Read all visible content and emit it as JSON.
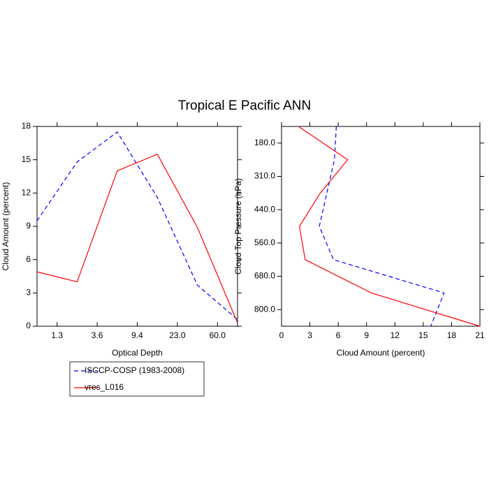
{
  "title": "Tropical E Pacific ANN",
  "chart_data": [
    {
      "type": "line",
      "orientation": "vertical",
      "xlabel": "Optical Depth",
      "ylabel": "Cloud Amount (percent)",
      "x": [
        0,
        1,
        2,
        3,
        4,
        5
      ],
      "xlim": [
        0,
        5
      ],
      "xticks": [
        {
          "value": 0.5,
          "label": "1.3"
        },
        {
          "value": 1.5,
          "label": "3.6"
        },
        {
          "value": 2.5,
          "label": "9.4"
        },
        {
          "value": 3.5,
          "label": "23.0"
        },
        {
          "value": 4.5,
          "label": "60.0"
        }
      ],
      "ylim": [
        0,
        18
      ],
      "yticks": [
        0,
        3,
        6,
        9,
        12,
        15,
        18
      ],
      "legend": true,
      "series": [
        {
          "name": "ISCCP-COSP (1983-2008)",
          "color": "#0000ff",
          "dash": true,
          "values": [
            9.5,
            14.8,
            17.5,
            11.6,
            3.7,
            0.6
          ]
        },
        {
          "name": "vres_L016",
          "color": "#ff0000",
          "dash": false,
          "values": [
            4.9,
            4.0,
            14.0,
            15.5,
            8.9,
            0.3
          ]
        }
      ]
    },
    {
      "type": "line",
      "orientation": "horizontal",
      "xlabel": "Cloud Amount (percent)",
      "ylabel": "Cloud Top Pressure (hPa)",
      "y": [
        0,
        1,
        2,
        3,
        4,
        5,
        6
      ],
      "ylim": [
        6,
        0
      ],
      "yticks": [
        {
          "value": 0.5,
          "label": "180.0"
        },
        {
          "value": 1.5,
          "label": "310.0"
        },
        {
          "value": 2.5,
          "label": "440.0"
        },
        {
          "value": 3.5,
          "label": "560.0"
        },
        {
          "value": 4.5,
          "label": "680.0"
        },
        {
          "value": 5.5,
          "label": "800.0"
        }
      ],
      "xlim": [
        0,
        21
      ],
      "xticks": [
        0,
        3,
        6,
        9,
        12,
        15,
        18,
        21
      ],
      "legend": false,
      "series": [
        {
          "color": "#0000ff",
          "dash": true,
          "values": [
            5.8,
            5.6,
            4.8,
            4.0,
            5.5,
            17.2,
            15.8
          ]
        },
        {
          "color": "#ff0000",
          "dash": false,
          "values": [
            1.8,
            7.0,
            4.1,
            1.9,
            2.5,
            9.5,
            21.0
          ]
        }
      ]
    }
  ]
}
